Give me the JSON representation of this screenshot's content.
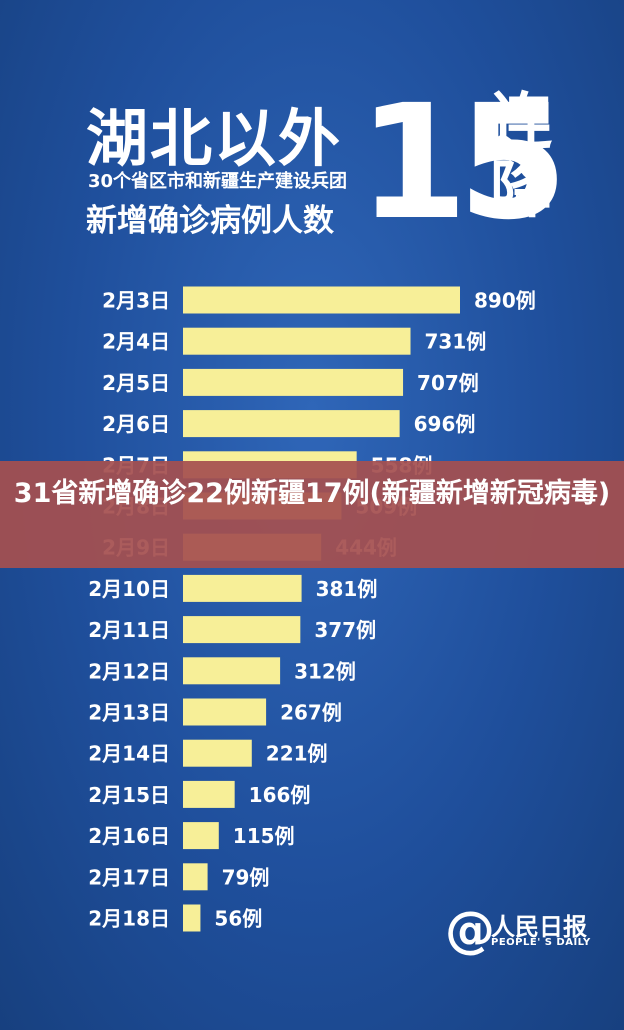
{
  "header": {
    "title_main": "湖北以外",
    "subtitle_small": "30个省区市和新疆生产建设兵团",
    "subtitle_large": "新增确诊病例人数",
    "big_number": "15",
    "streak_label": "连降"
  },
  "chart_data": {
    "type": "bar",
    "orientation": "horizontal",
    "title": "湖北以外15连降",
    "subtitle": "30个省区市和新疆生产建设兵团新增确诊病例人数",
    "categories": [
      "2月3日",
      "2月4日",
      "2月5日",
      "2月6日",
      "2月7日",
      "2月8日",
      "2月9日",
      "2月10日",
      "2月11日",
      "2月12日",
      "2月13日",
      "2月14日",
      "2月15日",
      "2月16日",
      "2月17日",
      "2月18日"
    ],
    "values": [
      890,
      731,
      707,
      696,
      558,
      509,
      444,
      381,
      377,
      312,
      267,
      221,
      166,
      115,
      79,
      56
    ],
    "value_labels": [
      "890例",
      "731例",
      "707例",
      "696例",
      "558例",
      "509例",
      "444例",
      "381例",
      "377例",
      "312例",
      "267例",
      "221例",
      "166例",
      "115例",
      "79例",
      "56例"
    ],
    "xlim": [
      0,
      890
    ],
    "bar_color": "#f7ef98",
    "grid": false
  },
  "banner": {
    "text": "31省新增确诊22例新疆17例(新疆新增新冠病毒)"
  },
  "logo": {
    "icon": "at-icon",
    "name_cn": "人民日报",
    "name_en": "PEOPLE' S DAILY"
  },
  "colors": {
    "background": "#1f4f9c",
    "bar": "#f7ef98",
    "banner": "#a55050"
  }
}
